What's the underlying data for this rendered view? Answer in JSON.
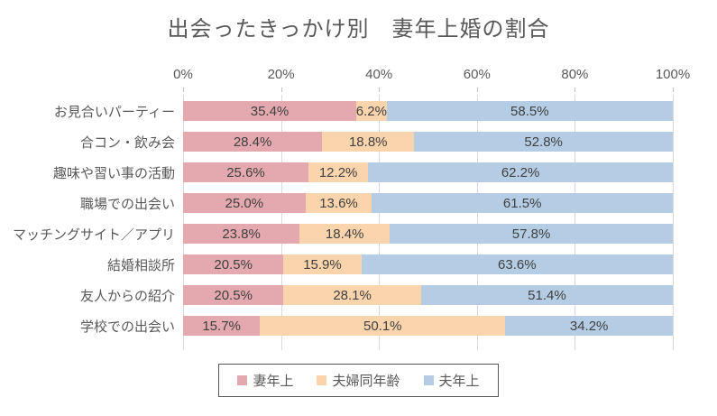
{
  "chart_data": {
    "type": "bar",
    "orientation": "horizontal-stacked",
    "title": "出会ったきっかけ別　妻年上婚の割合",
    "categories": [
      "お見合いパーティー",
      "合コン・飲み会",
      "趣味や習い事の活動",
      "職場での出会い",
      "マッチングサイト／アプリ",
      "結婚相談所",
      "友人からの紹介",
      "学校での出会い"
    ],
    "series": [
      {
        "name": "妻年上",
        "slug": "wife-older",
        "color": "#E3A9AE",
        "values": [
          35.4,
          28.4,
          25.6,
          25.0,
          23.8,
          20.5,
          20.5,
          15.7
        ]
      },
      {
        "name": "夫婦同年齢",
        "slug": "same-age",
        "color": "#FAD4AC",
        "values": [
          6.2,
          18.8,
          12.2,
          13.6,
          18.4,
          15.9,
          28.1,
          50.1
        ]
      },
      {
        "name": "夫年上",
        "slug": "husband-older",
        "color": "#B4CCE4",
        "values": [
          58.5,
          52.8,
          62.2,
          61.5,
          57.8,
          63.6,
          51.4,
          34.2
        ]
      }
    ],
    "x_ticks": [
      "0%",
      "20%",
      "40%",
      "60%",
      "80%",
      "100%"
    ],
    "xlim": [
      0,
      100
    ],
    "value_suffix": "%",
    "data_labels": "inside-center",
    "grid": "vertical",
    "legend_position": "bottom",
    "colors": {
      "grid": "#D9D9D9",
      "tick": "#BFBFBF",
      "axis_text": "#595959",
      "data_label_text": "#404040",
      "legend_border": "#595959"
    }
  }
}
